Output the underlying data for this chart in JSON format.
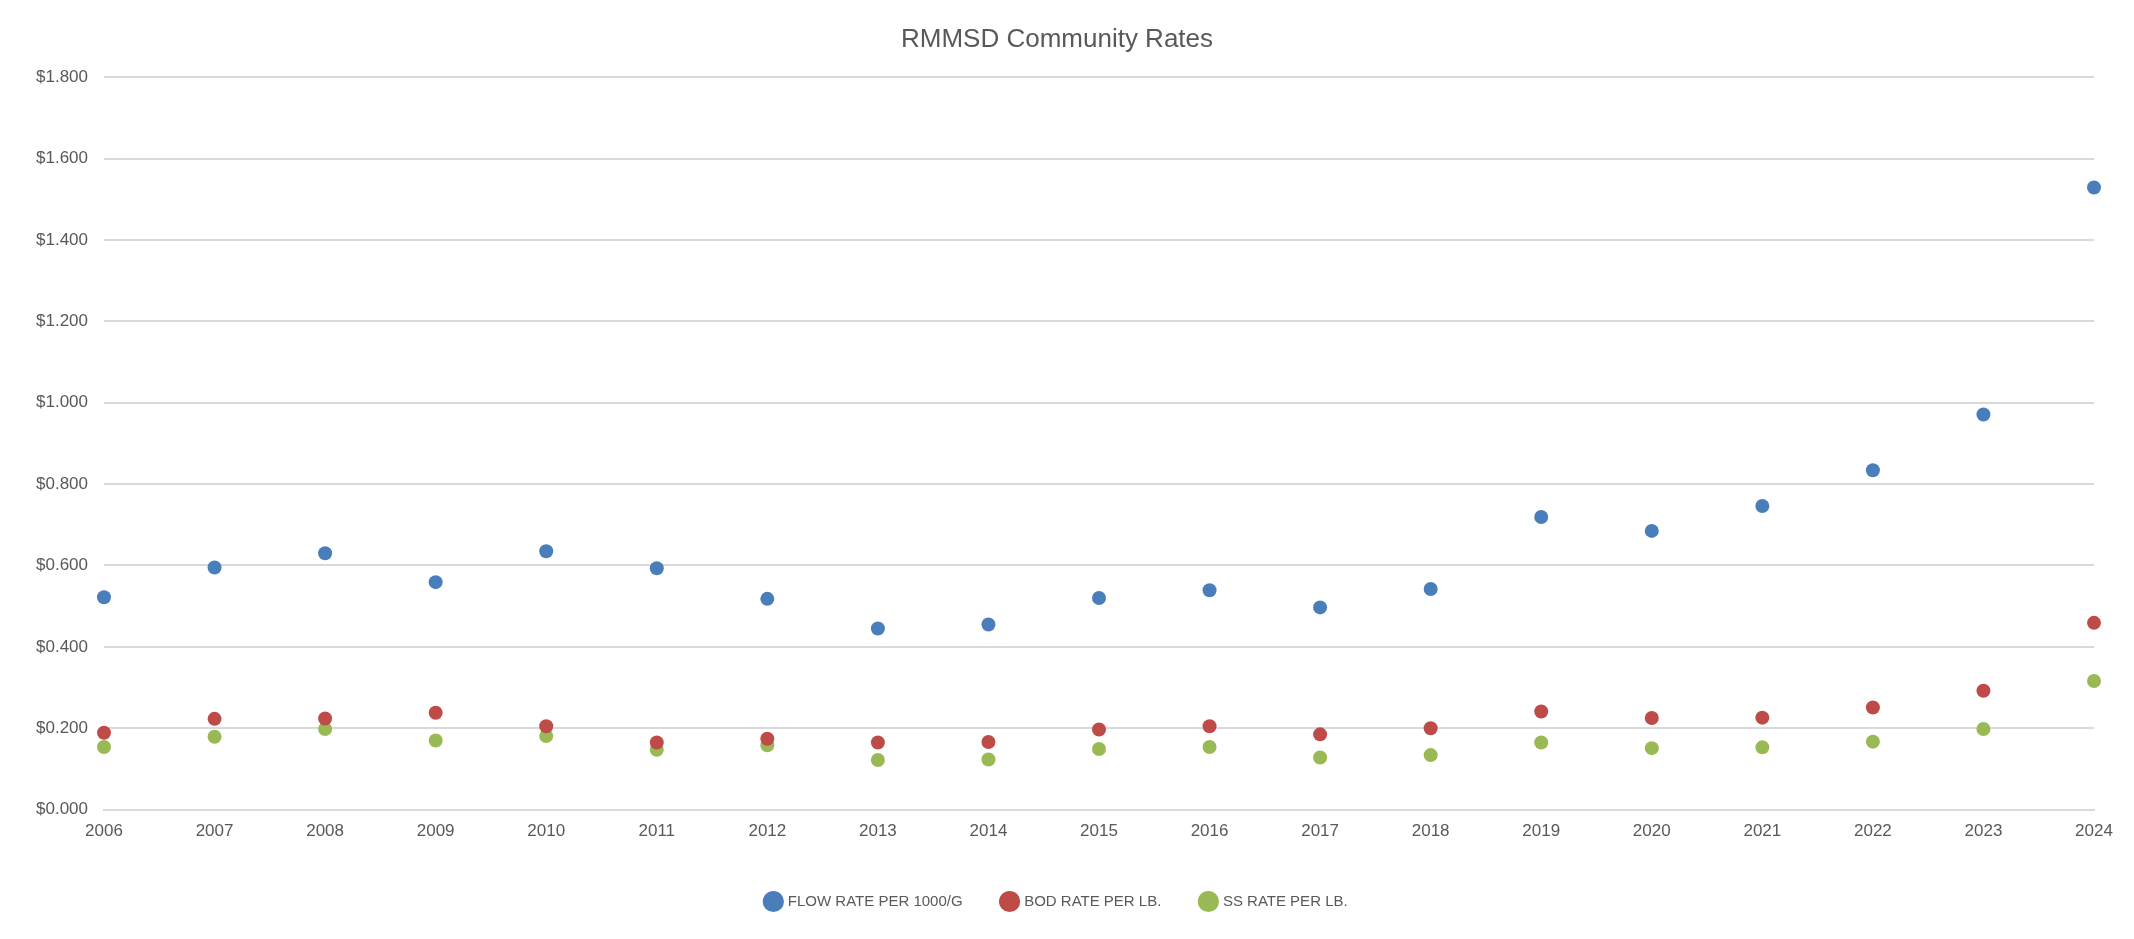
{
  "chart_data": {
    "type": "scatter",
    "title": "RMMSD Community Rates",
    "categories": [
      "2006",
      "2007",
      "2008",
      "2009",
      "2010",
      "2011",
      "2012",
      "2013",
      "2014",
      "2015",
      "2016",
      "2017",
      "2018",
      "2019",
      "2020",
      "2021",
      "2022",
      "2023",
      "2024"
    ],
    "series": [
      {
        "name": "FLOW RATE PER 1000/G",
        "color": "#4a7ebb",
        "values": [
          0.522,
          0.595,
          0.63,
          0.559,
          0.635,
          0.593,
          0.518,
          0.445,
          0.455,
          0.52,
          0.539,
          0.497,
          0.542,
          0.719,
          0.685,
          0.746,
          0.834,
          0.971,
          1.529
        ]
      },
      {
        "name": "BOD RATE PER LB.",
        "color": "#be4b48",
        "values": [
          0.189,
          0.223,
          0.224,
          0.238,
          0.205,
          0.165,
          0.174,
          0.165,
          0.166,
          0.197,
          0.205,
          0.185,
          0.2,
          0.241,
          0.225,
          0.226,
          0.251,
          0.292,
          0.459
        ]
      },
      {
        "name": "SS RATE PER LB.",
        "color": "#98b954",
        "values": [
          0.154,
          0.179,
          0.198,
          0.17,
          0.181,
          0.147,
          0.158,
          0.122,
          0.123,
          0.149,
          0.154,
          0.128,
          0.134,
          0.165,
          0.151,
          0.153,
          0.167,
          0.198,
          0.316
        ]
      }
    ],
    "ylim": [
      0,
      1.8
    ],
    "yticks": [
      {
        "value": 0,
        "label": "$0.000"
      },
      {
        "value": 0.2,
        "label": "$0.200"
      },
      {
        "value": 0.4,
        "label": "$0.400"
      },
      {
        "value": 0.6,
        "label": "$0.600"
      },
      {
        "value": 0.8,
        "label": "$0.800"
      },
      {
        "value": 1.0,
        "label": "$1.000"
      },
      {
        "value": 1.2,
        "label": "$1.200"
      },
      {
        "value": 1.4,
        "label": "$1.400"
      },
      {
        "value": 1.6,
        "label": "$1.600"
      },
      {
        "value": 1.8,
        "label": "$1.800"
      }
    ],
    "grid": "y",
    "legend": "bottom",
    "marker": "circle"
  }
}
